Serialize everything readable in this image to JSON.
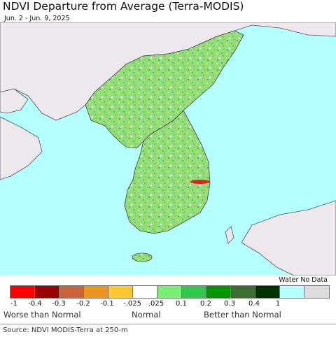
{
  "title": "NDVI Departure from Average (Terra-MODIS)",
  "subtitle": "Jun. 2 - Jun. 9, 2025",
  "legend": {
    "nodata_label": "Water No Data",
    "colors": [
      "#ff0000",
      "#990000",
      "#c8643c",
      "#e8961e",
      "#ffc832",
      "#ffffff",
      "#78f078",
      "#32c850",
      "#009600",
      "#3c6e32",
      "#003200",
      "#b4ffff",
      "#dcdcdc"
    ],
    "ticks": [
      "-1",
      "-0.4",
      "-0.3",
      "-0.2",
      "-0.1",
      "-.025",
      ".025",
      "0.1",
      "0.2",
      "0.3",
      "0.4",
      "1"
    ],
    "captions": {
      "worse": "Worse than Normal",
      "normal": "Normal",
      "better": "Better than Normal"
    }
  },
  "map": {
    "water_color": "#b4ffff",
    "nodata_land_color": "#ede8ed",
    "land_color": "#8fe07a"
  },
  "source": "Source: NDVI MODIS-Terra at 250-m"
}
